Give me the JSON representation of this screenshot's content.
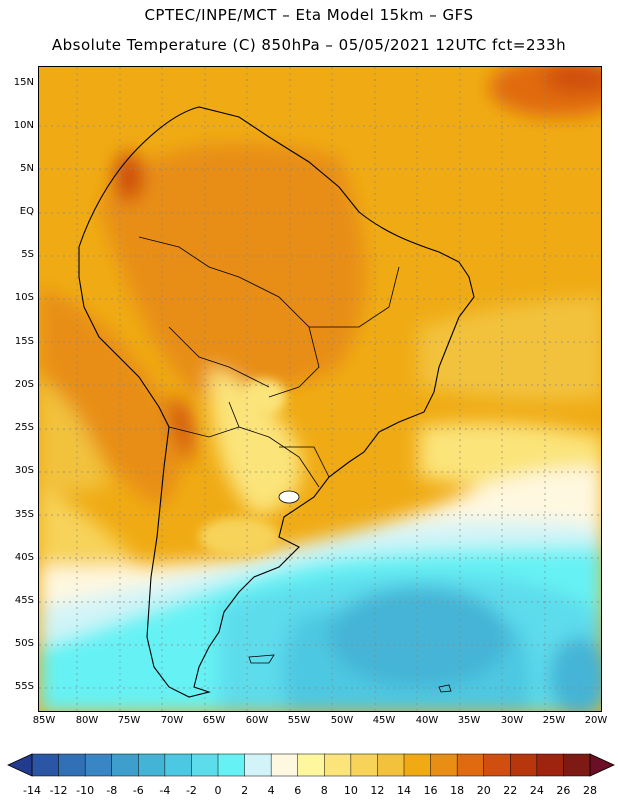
{
  "header": {
    "line1": "CPTEC/INPE/MCT –  Eta Model 15km – GFS",
    "line2": "Absolute Temperature (C) 850hPa – 05/05/2021 12UTC fct=233h"
  },
  "map": {
    "lat_labels": [
      "15N",
      "10N",
      "5N",
      "EQ",
      "5S",
      "10S",
      "15S",
      "20S",
      "25S",
      "30S",
      "35S",
      "40S",
      "45S",
      "50S",
      "55S"
    ],
    "lon_labels": [
      "85W",
      "80W",
      "75W",
      "70W",
      "65W",
      "60W",
      "55W",
      "50W",
      "45W",
      "40W",
      "35W",
      "30W",
      "25W",
      "20W"
    ]
  },
  "colorbar": {
    "colors": [
      "#233b8c",
      "#2a56a3",
      "#3170b5",
      "#3a86c4",
      "#3f9fcc",
      "#44b4d6",
      "#4dc8e2",
      "#5ddcec",
      "#66f2f4",
      "#d2f4f8",
      "#fff8e0",
      "#fff7a0",
      "#fbe47a",
      "#f7d35a",
      "#f2c23c",
      "#f0ab14",
      "#e88e14",
      "#e06a10",
      "#cf4e10",
      "#b8360e",
      "#9e2410",
      "#7e1a14",
      "#6b0f25"
    ],
    "tick_labels": [
      "-14",
      "-12",
      "-10",
      "-8",
      "-6",
      "-4",
      "-2",
      "0",
      "2",
      "4",
      "6",
      "8",
      "10",
      "12",
      "14",
      "16",
      "18",
      "20",
      "22",
      "24",
      "26",
      "28"
    ]
  }
}
